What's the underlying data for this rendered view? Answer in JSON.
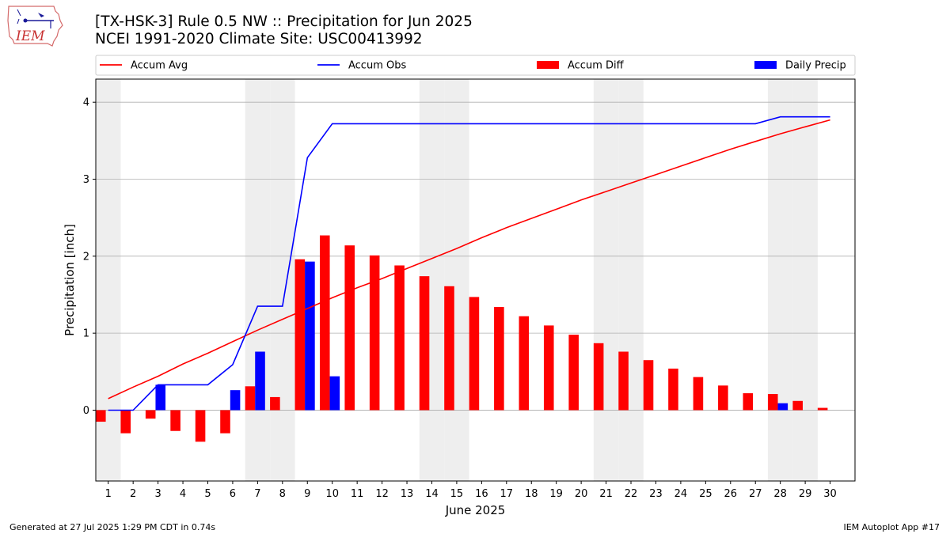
{
  "header": {
    "title_line1": "[TX-HSK-3] Rule 0.5 NW :: Precipitation for Jun 2025",
    "title_line2": "NCEI 1991-2020 Climate Site: USC00413992",
    "logo_text": "IEM"
  },
  "footer": {
    "generated": "Generated at 27 Jul 2025 1:29 PM CDT in 0.74s",
    "app": "IEM Autoplot App #17"
  },
  "chart_data": {
    "type": "bar",
    "title": "[TX-HSK-3] Rule 0.5 NW :: Precipitation for Jun 2025",
    "subtitle": "NCEI 1991-2020 Climate Site: USC00413992",
    "xlabel": "June 2025",
    "ylabel": "Precipitation [inch]",
    "ylim": [
      -0.92,
      4.3
    ],
    "xlim": [
      0.5,
      31.0
    ],
    "yticks": [
      0,
      1,
      2,
      3,
      4
    ],
    "x": [
      1,
      2,
      3,
      4,
      5,
      6,
      7,
      8,
      9,
      10,
      11,
      12,
      13,
      14,
      15,
      16,
      17,
      18,
      19,
      20,
      21,
      22,
      23,
      24,
      25,
      26,
      27,
      28,
      29,
      30
    ],
    "grid": "horizontal",
    "legend_placement": "top",
    "weekend_days": [
      1,
      7,
      8,
      14,
      15,
      21,
      22,
      28,
      29
    ],
    "series": [
      {
        "name": "Accum Avg",
        "type": "line",
        "color": "#ff0000",
        "values": [
          0.15,
          0.3,
          0.44,
          0.6,
          0.74,
          0.89,
          1.04,
          1.18,
          1.32,
          1.46,
          1.59,
          1.71,
          1.84,
          1.97,
          2.1,
          2.24,
          2.37,
          2.49,
          2.61,
          2.73,
          2.84,
          2.95,
          3.06,
          3.17,
          3.28,
          3.39,
          3.49,
          3.59,
          3.68,
          3.77
        ]
      },
      {
        "name": "Accum Obs",
        "type": "line",
        "color": "#0000ff",
        "values": [
          0.0,
          0.0,
          0.33,
          0.33,
          0.33,
          0.59,
          1.35,
          1.35,
          3.28,
          3.72,
          3.72,
          3.72,
          3.72,
          3.72,
          3.72,
          3.72,
          3.72,
          3.72,
          3.72,
          3.72,
          3.72,
          3.72,
          3.72,
          3.72,
          3.72,
          3.72,
          3.72,
          3.81,
          3.81,
          3.81
        ]
      },
      {
        "name": "Accum Diff",
        "type": "bar",
        "color": "#ff0000",
        "values": [
          -0.15,
          -0.3,
          -0.11,
          -0.27,
          -0.41,
          -0.3,
          0.31,
          0.17,
          1.96,
          2.27,
          2.14,
          2.01,
          1.88,
          1.74,
          1.61,
          1.47,
          1.34,
          1.22,
          1.1,
          0.98,
          0.87,
          0.76,
          0.65,
          0.54,
          0.43,
          0.32,
          0.22,
          0.21,
          0.12,
          0.03
        ]
      },
      {
        "name": "Daily Precip",
        "type": "bar",
        "color": "#0000ff",
        "values": [
          0,
          0,
          0.33,
          0,
          0,
          0.26,
          0.76,
          0,
          1.93,
          0.44,
          0,
          0,
          0,
          0,
          0,
          0,
          0,
          0,
          0,
          0,
          0,
          0,
          0,
          0,
          0,
          0,
          0,
          0.09,
          0,
          0
        ]
      }
    ]
  }
}
